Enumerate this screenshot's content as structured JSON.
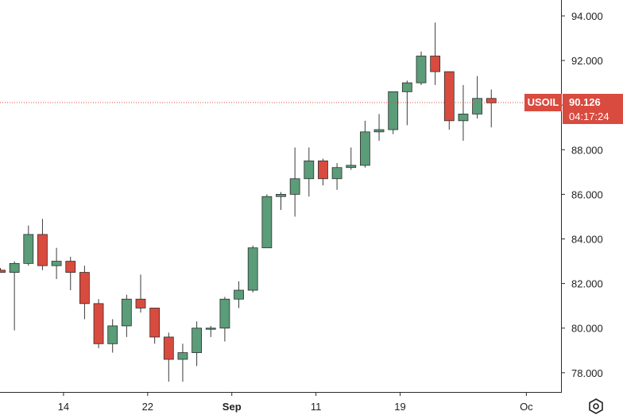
{
  "chart_data": {
    "type": "candlestick",
    "symbol": "USOIL",
    "last_price": "90.126",
    "countdown": "04:17:24",
    "y_ticks": [
      "94.000",
      "92.000",
      "90.000",
      "88.000",
      "86.000",
      "84.000",
      "82.000",
      "80.000",
      "78.000"
    ],
    "y_range": [
      77.3,
      94.7
    ],
    "x_labels": [
      {
        "label": "14",
        "index": 4.5
      },
      {
        "label": "22",
        "index": 10.5
      },
      {
        "label": "Sep",
        "index": 16.5
      },
      {
        "label": "11",
        "index": 22.5
      },
      {
        "label": "19",
        "index": 28.5
      },
      {
        "label": "Oc",
        "index": 37.5
      }
    ],
    "candles": [
      {
        "o": 82.6,
        "h": 82.7,
        "l": 82.5,
        "c": 82.5
      },
      {
        "o": 82.5,
        "h": 83.0,
        "l": 79.9,
        "c": 82.9
      },
      {
        "o": 82.9,
        "h": 84.6,
        "l": 82.8,
        "c": 84.2
      },
      {
        "o": 84.2,
        "h": 84.9,
        "l": 82.6,
        "c": 82.8
      },
      {
        "o": 82.8,
        "h": 83.6,
        "l": 82.2,
        "c": 83.0
      },
      {
        "o": 83.0,
        "h": 83.2,
        "l": 81.7,
        "c": 82.5
      },
      {
        "o": 82.5,
        "h": 82.8,
        "l": 80.4,
        "c": 81.1
      },
      {
        "o": 81.1,
        "h": 81.3,
        "l": 79.1,
        "c": 79.3
      },
      {
        "o": 79.3,
        "h": 80.4,
        "l": 78.9,
        "c": 80.1
      },
      {
        "o": 80.1,
        "h": 81.5,
        "l": 79.6,
        "c": 81.3
      },
      {
        "o": 81.3,
        "h": 82.4,
        "l": 80.7,
        "c": 80.9
      },
      {
        "o": 80.9,
        "h": 80.9,
        "l": 79.3,
        "c": 79.6
      },
      {
        "o": 79.6,
        "h": 79.8,
        "l": 77.6,
        "c": 78.6
      },
      {
        "o": 78.6,
        "h": 79.3,
        "l": 77.6,
        "c": 78.9
      },
      {
        "o": 78.9,
        "h": 80.3,
        "l": 78.3,
        "c": 80.0
      },
      {
        "o": 80.0,
        "h": 80.1,
        "l": 79.6,
        "c": 80.0
      },
      {
        "o": 80.0,
        "h": 81.4,
        "l": 79.4,
        "c": 81.3
      },
      {
        "o": 81.3,
        "h": 82.1,
        "l": 80.9,
        "c": 81.7
      },
      {
        "o": 81.7,
        "h": 83.7,
        "l": 81.6,
        "c": 83.6
      },
      {
        "o": 83.6,
        "h": 86.0,
        "l": 83.6,
        "c": 85.9
      },
      {
        "o": 85.9,
        "h": 86.1,
        "l": 85.3,
        "c": 86.0
      },
      {
        "o": 86.0,
        "h": 88.1,
        "l": 85.0,
        "c": 86.7
      },
      {
        "o": 86.7,
        "h": 88.1,
        "l": 85.9,
        "c": 87.5
      },
      {
        "o": 87.5,
        "h": 87.6,
        "l": 86.4,
        "c": 86.7
      },
      {
        "o": 86.7,
        "h": 87.4,
        "l": 86.2,
        "c": 87.2
      },
      {
        "o": 87.2,
        "h": 88.1,
        "l": 87.1,
        "c": 87.3
      },
      {
        "o": 87.3,
        "h": 89.3,
        "l": 87.2,
        "c": 88.8
      },
      {
        "o": 88.8,
        "h": 89.6,
        "l": 88.4,
        "c": 88.9
      },
      {
        "o": 88.9,
        "h": 90.6,
        "l": 88.7,
        "c": 90.6
      },
      {
        "o": 90.6,
        "h": 91.1,
        "l": 89.1,
        "c": 91.0
      },
      {
        "o": 91.0,
        "h": 92.4,
        "l": 90.9,
        "c": 92.2
      },
      {
        "o": 92.2,
        "h": 93.7,
        "l": 90.9,
        "c": 91.5
      },
      {
        "o": 91.5,
        "h": 91.5,
        "l": 88.9,
        "c": 89.3
      },
      {
        "o": 89.3,
        "h": 90.9,
        "l": 88.4,
        "c": 89.6
      },
      {
        "o": 89.6,
        "h": 91.3,
        "l": 89.4,
        "c": 90.3
      },
      {
        "o": 90.3,
        "h": 90.7,
        "l": 89.0,
        "c": 90.1
      }
    ],
    "colors": {
      "up": "#5b9c79",
      "down": "#d94b3f",
      "wick": "#3b3b3b",
      "last_line": "#d94b3f"
    }
  }
}
